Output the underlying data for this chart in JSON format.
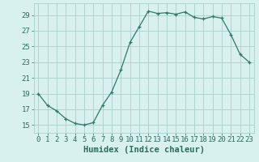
{
  "x": [
    0,
    1,
    2,
    3,
    4,
    5,
    6,
    7,
    8,
    9,
    10,
    11,
    12,
    13,
    14,
    15,
    16,
    17,
    18,
    19,
    20,
    21,
    22,
    23
  ],
  "y": [
    19.0,
    17.5,
    16.8,
    15.8,
    15.2,
    15.0,
    15.3,
    17.5,
    19.2,
    22.0,
    25.5,
    27.5,
    29.5,
    29.2,
    29.3,
    29.1,
    29.4,
    28.7,
    28.5,
    28.8,
    28.6,
    26.5,
    24.0,
    23.0
  ],
  "line_color": "#2d7a6a",
  "marker": "+",
  "bg_color": "#d8f0ee",
  "grid_color": "#aacfcc",
  "xlabel": "Humidex (Indice chaleur)",
  "ylim": [
    14.0,
    30.5
  ],
  "xlim": [
    -0.5,
    23.5
  ],
  "yticks": [
    15,
    17,
    19,
    21,
    23,
    25,
    27,
    29
  ],
  "xticks": [
    0,
    1,
    2,
    3,
    4,
    5,
    6,
    7,
    8,
    9,
    10,
    11,
    12,
    13,
    14,
    15,
    16,
    17,
    18,
    19,
    20,
    21,
    22,
    23
  ],
  "tick_color": "#2d6b5e",
  "font_size_label": 7.5,
  "font_size_tick": 6.5
}
